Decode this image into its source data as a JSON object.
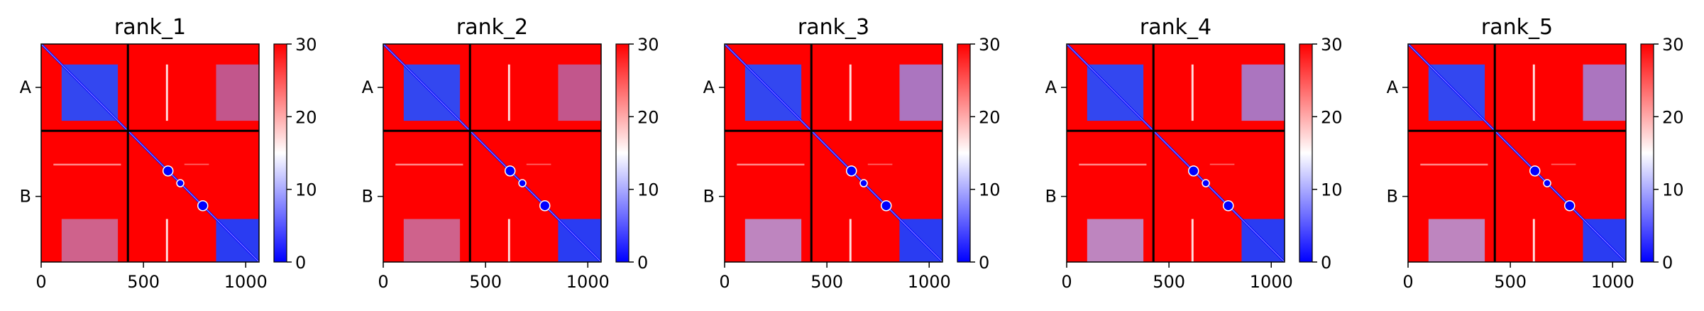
{
  "chart_data": [
    {
      "type": "heatmap",
      "title": "rank_1",
      "chain_labels": [
        "A",
        "B"
      ],
      "chain_break": 424,
      "xlim": [
        0,
        1065
      ],
      "xticks": [
        0,
        500,
        1000
      ],
      "colorbar": {
        "min": 0,
        "max": 30,
        "ticks": [
          0,
          10,
          20,
          30
        ],
        "colors": [
          "#0000ff",
          "#ffffff",
          "#ff0000"
        ]
      }
    },
    {
      "type": "heatmap",
      "title": "rank_2",
      "chain_labels": [
        "A",
        "B"
      ],
      "chain_break": 424,
      "xlim": [
        0,
        1065
      ],
      "xticks": [
        0,
        500,
        1000
      ],
      "colorbar": {
        "min": 0,
        "max": 30,
        "ticks": [
          0,
          10,
          20,
          30
        ],
        "colors": [
          "#0000ff",
          "#ffffff",
          "#ff0000"
        ]
      }
    },
    {
      "type": "heatmap",
      "title": "rank_3",
      "chain_labels": [
        "A",
        "B"
      ],
      "chain_break": 424,
      "xlim": [
        0,
        1065
      ],
      "xticks": [
        0,
        500,
        1000
      ],
      "colorbar": {
        "min": 0,
        "max": 30,
        "ticks": [
          0,
          10,
          20,
          30
        ],
        "colors": [
          "#0000ff",
          "#ffffff",
          "#ff0000"
        ]
      }
    },
    {
      "type": "heatmap",
      "title": "rank_4",
      "chain_labels": [
        "A",
        "B"
      ],
      "chain_break": 424,
      "xlim": [
        0,
        1065
      ],
      "xticks": [
        0,
        500,
        1000
      ],
      "colorbar": {
        "min": 0,
        "max": 30,
        "ticks": [
          0,
          10,
          20,
          30
        ],
        "colors": [
          "#0000ff",
          "#ffffff",
          "#ff0000"
        ]
      }
    },
    {
      "type": "heatmap",
      "title": "rank_5",
      "chain_labels": [
        "A",
        "B"
      ],
      "chain_break": 424,
      "xlim": [
        0,
        1065
      ],
      "xticks": [
        0,
        500,
        1000
      ],
      "colorbar": {
        "min": 0,
        "max": 30,
        "ticks": [
          0,
          10,
          20,
          30
        ],
        "colors": [
          "#0000ff",
          "#ffffff",
          "#ff0000"
        ]
      }
    }
  ]
}
